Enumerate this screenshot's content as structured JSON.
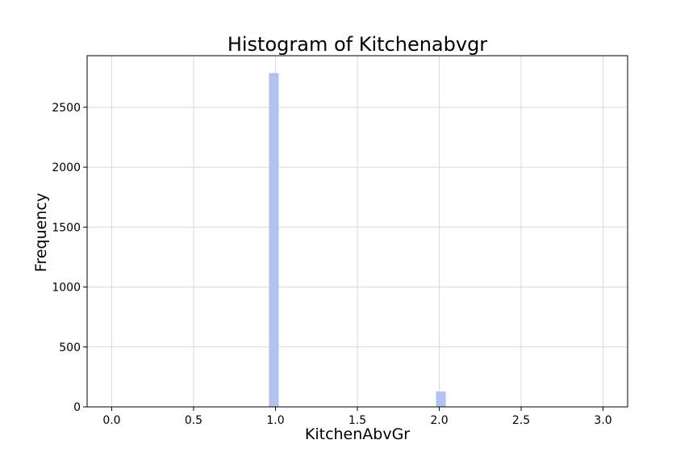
{
  "chart_data": {
    "type": "bar",
    "title": "Histogram of Kitchenabvgr",
    "xlabel": "KitchenAbvGr",
    "ylabel": "Frequency",
    "xlim": [
      -0.15,
      3.15
    ],
    "ylim": [
      0,
      2930
    ],
    "xticks": [
      0.0,
      0.5,
      1.0,
      1.5,
      2.0,
      2.5,
      3.0
    ],
    "xtick_labels": [
      "0.0",
      "0.5",
      "1.0",
      "1.5",
      "2.0",
      "2.5",
      "3.0"
    ],
    "yticks": [
      0,
      500,
      1000,
      1500,
      2000,
      2500
    ],
    "ytick_labels": [
      "0",
      "500",
      "1000",
      "1500",
      "2000",
      "2500"
    ],
    "grid": true,
    "bar_color": "#b3c3f0",
    "bins": [
      {
        "x0": 0.96,
        "x1": 1.02,
        "value": 2785
      },
      {
        "x0": 1.98,
        "x1": 2.04,
        "value": 129
      }
    ]
  }
}
